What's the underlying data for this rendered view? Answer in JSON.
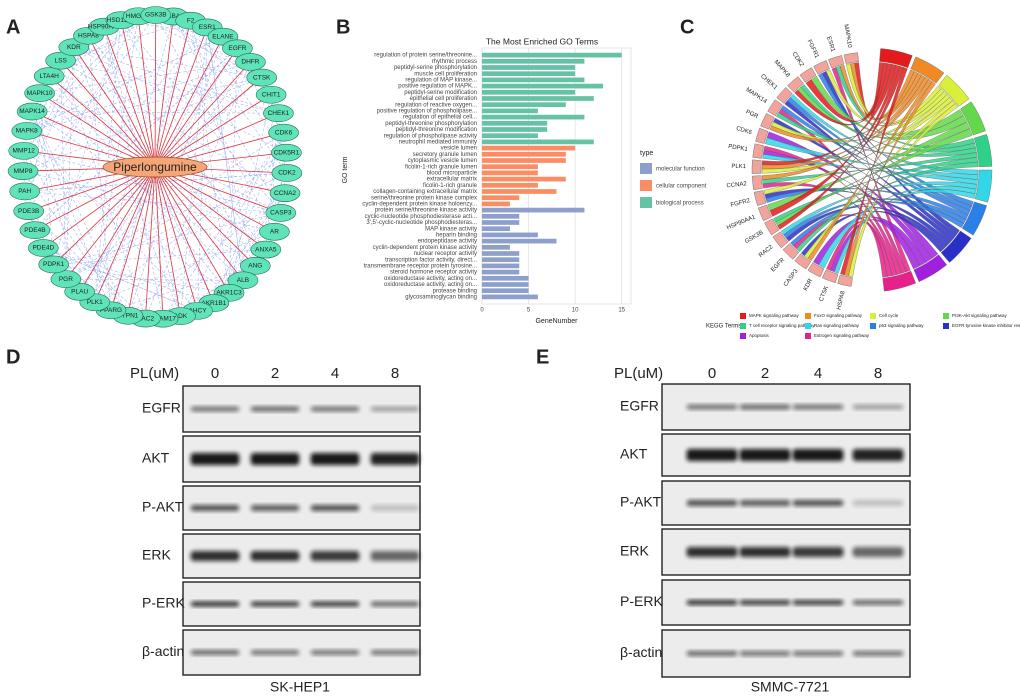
{
  "panel_labels": [
    "A",
    "B",
    "C",
    "D",
    "E"
  ],
  "network": {
    "center": "Piperlongumine",
    "nodes": [
      "GBA",
      "F2",
      "ESR1",
      "ELANE",
      "EGFR",
      "DHFR",
      "CTSK",
      "CHIT1",
      "CHEK1",
      "CDK6",
      "CDK5R1",
      "CDK2",
      "CCNA2",
      "CASP3",
      "AR",
      "ANXA5",
      "ANG",
      "ALB",
      "AKR1C3",
      "AKR1B1",
      "AHCY",
      "ADK",
      "ADAM17",
      "RAC2",
      "PTPN1",
      "PPARG",
      "PLK1",
      "PLAU",
      "PGR",
      "PDPK1",
      "PDE4D",
      "PDE4B",
      "PDE3B",
      "PAH",
      "MMP8",
      "MMP12",
      "MAPK8",
      "MAPK14",
      "MAPK10",
      "LTA4H",
      "LSS",
      "KDR",
      "HSPA8",
      "HSP90AA1",
      "HSD11B1",
      "HMGCR",
      "GSK3B"
    ]
  },
  "chart_data": {
    "type": "barh",
    "title": "The Most Enriched GO Terms",
    "xlabel": "GeneNumber",
    "ylabel": "GO term",
    "legend_title": "type",
    "xlim": [
      0,
      16
    ],
    "xticks": [
      0,
      5,
      10,
      15
    ],
    "grid": true,
    "series": [
      {
        "name": "molecular function",
        "color": "#8da0cb",
        "categories": [
          "protein serine/threonine kinase activity",
          "cyclic-nucleotide phosphodiesterase acti...",
          "3',5'-cyclic-nucleotide phosphodiesteras...",
          "MAP kinase activity",
          "heparin binding",
          "endopeptidase activity",
          "cyclin-dependent protein kinase activity",
          "nuclear receptor activity",
          "transcription factor activity, direct...",
          "transmembrane receptor protein tyrosine...",
          "steroid hormone receptor activity",
          "oxidoreductase activity, acting on...",
          "oxidoreductase activity, acting on...",
          "protease binding",
          "glycosaminoglycan binding"
        ],
        "values": [
          11,
          4,
          4,
          3,
          6,
          8,
          3,
          4,
          4,
          4,
          4,
          5,
          5,
          5,
          6
        ]
      },
      {
        "name": "cellular component",
        "color": "#fc8d62",
        "categories": [
          "vesicle lumen",
          "secretory granule lumen",
          "cytoplasmic vesicle lumen",
          "ficolin-1-rich granule lumen",
          "blood microparticle",
          "extracellular matrix",
          "ficolin-1-rich granule",
          "collagen-containing extracellular matrix",
          "serine/threonine protein kinase complex",
          "cyclin-dependent protein kinase holoenzy..."
        ],
        "values": [
          10,
          9,
          9,
          6,
          6,
          9,
          6,
          8,
          4,
          3
        ]
      },
      {
        "name": "biological process",
        "color": "#66c2a5",
        "categories": [
          "regulation of protein serine/threonine...",
          "rhythmic process",
          "peptidyl-serine phosphorylation",
          "muscle cell proliferation",
          "regulation of MAP kinase...",
          "positive regulation of MAPK...",
          "peptidyl-serine modification",
          "epithelial cell proliferation",
          "regulation of reactive oxygen...",
          "positive regulation of phospholipase...",
          "regulation of epithelial cell...",
          "peptidyl-threonine phosphorylation",
          "peptidyl-threonine modification",
          "regulation of phospholipase activity",
          "neutrophil mediated immunity"
        ],
        "values": [
          15,
          11,
          10,
          10,
          11,
          13,
          10,
          12,
          9,
          6,
          11,
          7,
          7,
          6,
          12
        ]
      }
    ]
  },
  "chord": {
    "genes": [
      "MAPK10",
      "ESR1",
      "FGFR1",
      "CDK2",
      "MAPK8",
      "CHEK1",
      "MAPK14",
      "PGR",
      "CDK6",
      "PDPK1",
      "PLK1",
      "CCNA2",
      "FGFR2",
      "HSP90AA1",
      "GSK3B",
      "RAC2",
      "EGFR",
      "CASP3",
      "KDR",
      "CTSK",
      "HSPA8"
    ],
    "gene_color": "#f2a39b",
    "legend_title": "KEGG Terms",
    "terms": [
      {
        "name": "MAPK signaling pathway",
        "color": "#e41a1c"
      },
      {
        "name": "FoxO signaling pathway",
        "color": "#f08a24"
      },
      {
        "name": "Cell cycle",
        "color": "#d9ef3a"
      },
      {
        "name": "PI3K-Akt signaling pathway",
        "color": "#63d84a"
      },
      {
        "name": "T cell receptor signaling pathway",
        "color": "#2fd18a"
      },
      {
        "name": "Ras signaling pathway",
        "color": "#33d6e6"
      },
      {
        "name": "p53 signaling pathway",
        "color": "#2a7fe8"
      },
      {
        "name": "EGFR tyrosine kinase inhibitor resistance",
        "color": "#2a2fc8"
      },
      {
        "name": "Apoptosis",
        "color": "#a020e0"
      },
      {
        "name": "Estrogen signaling pathway",
        "color": "#e8208c"
      }
    ]
  },
  "blots": [
    {
      "header": "PL(uM)",
      "doses": [
        0,
        2,
        4,
        8
      ],
      "rows": [
        "EGFR",
        "AKT",
        "P-AKT",
        "ERK",
        "P-ERK",
        "β-actin"
      ],
      "cell_line": "SK-HEP1"
    },
    {
      "header": "PL(uM)",
      "doses": [
        0,
        2,
        4,
        8
      ],
      "rows": [
        "EGFR",
        "AKT",
        "P-AKT",
        "ERK",
        "P-ERK",
        "β-actin"
      ],
      "cell_line": "SMMC-7721"
    }
  ]
}
